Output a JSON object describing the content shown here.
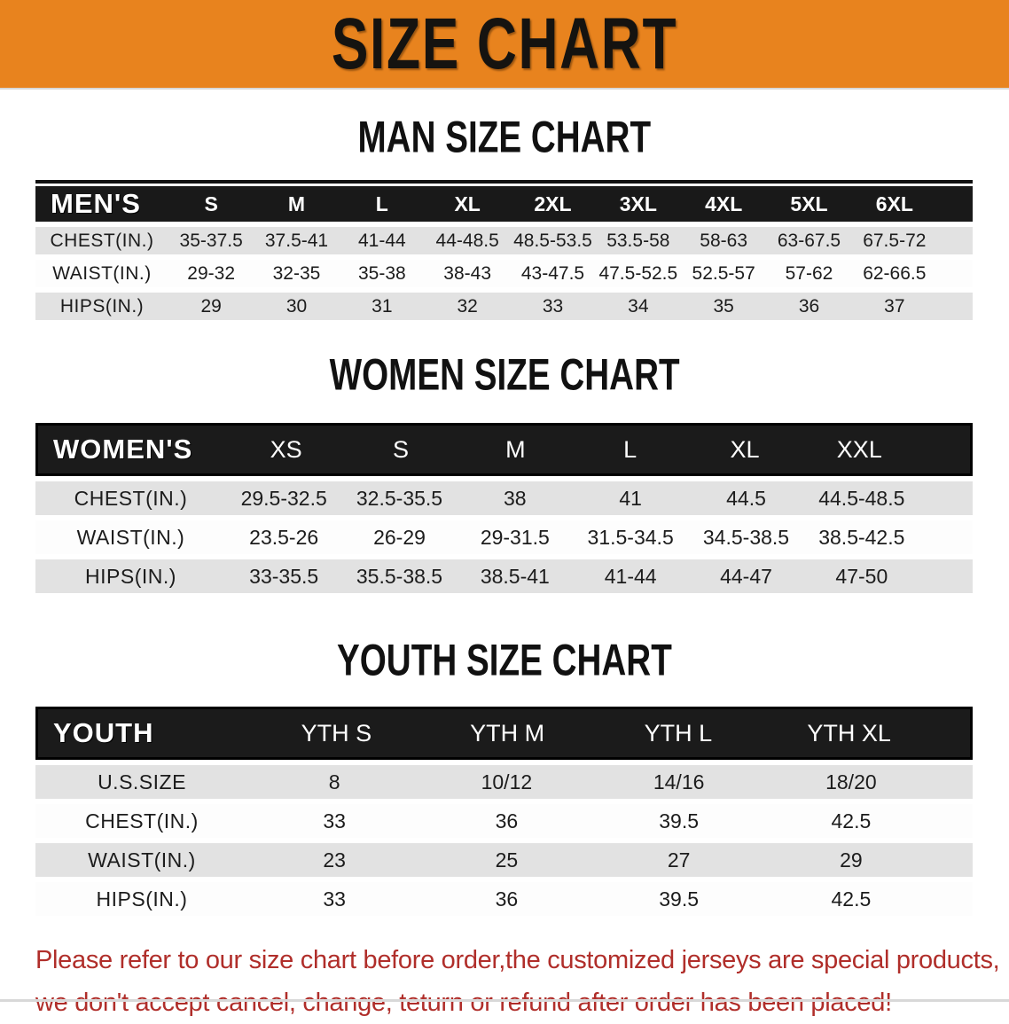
{
  "banner": {
    "title": "SIZE CHART"
  },
  "colors": {
    "banner_orange": "#E8831E",
    "header_black": "#191919",
    "stripe_gray": "#E2E2E2",
    "footer_red": "#B02E2A"
  },
  "sections": {
    "men": {
      "heading": "MAN SIZE CHART",
      "label": "MEN'S",
      "columns": [
        "S",
        "M",
        "L",
        "XL",
        "2XL",
        "3XL",
        "4XL",
        "5XL",
        "6XL"
      ],
      "rows": [
        {
          "label": "CHEST(IN.)",
          "values": [
            "35-37.5",
            "37.5-41",
            "41-44",
            "44-48.5",
            "48.5-53.5",
            "53.5-58",
            "58-63",
            "63-67.5",
            "67.5-72"
          ]
        },
        {
          "label": "WAIST(IN.)",
          "values": [
            "29-32",
            "32-35",
            "35-38",
            "38-43",
            "43-47.5",
            "47.5-52.5",
            "52.5-57",
            "57-62",
            "62-66.5"
          ]
        },
        {
          "label": "HIPS(IN.)",
          "values": [
            "29",
            "30",
            "31",
            "32",
            "33",
            "34",
            "35",
            "36",
            "37"
          ]
        }
      ]
    },
    "women": {
      "heading": "WOMEN SIZE CHART",
      "label": "WOMEN'S",
      "columns": [
        "XS",
        "S",
        "M",
        "L",
        "XL",
        "XXL"
      ],
      "rows": [
        {
          "label": "CHEST(IN.)",
          "values": [
            "29.5-32.5",
            "32.5-35.5",
            "38",
            "41",
            "44.5",
            "44.5-48.5"
          ]
        },
        {
          "label": "WAIST(IN.)",
          "values": [
            "23.5-26",
            "26-29",
            "29-31.5",
            "31.5-34.5",
            "34.5-38.5",
            "38.5-42.5"
          ]
        },
        {
          "label": "HIPS(IN.)",
          "values": [
            "33-35.5",
            "35.5-38.5",
            "38.5-41",
            "41-44",
            "44-47",
            "47-50"
          ]
        }
      ]
    },
    "youth": {
      "heading": "YOUTH SIZE CHART",
      "label": "YOUTH",
      "columns": [
        "YTH S",
        "YTH M",
        "YTH L",
        "YTH XL"
      ],
      "rows": [
        {
          "label": "U.S.SIZE",
          "values": [
            "8",
            "10/12",
            "14/16",
            "18/20"
          ]
        },
        {
          "label": "CHEST(IN.)",
          "values": [
            "33",
            "36",
            "39.5",
            "42.5"
          ]
        },
        {
          "label": "WAIST(IN.)",
          "values": [
            "23",
            "25",
            "27",
            "29"
          ]
        },
        {
          "label": "HIPS(IN.)",
          "values": [
            "33",
            "36",
            "39.5",
            "42.5"
          ]
        }
      ]
    }
  },
  "footer": {
    "line1": "Please refer to our size chart before order,the customized jerseys are special products,",
    "line2": "we don't accept cancel, change, teturn or refund after order has been placed!"
  }
}
